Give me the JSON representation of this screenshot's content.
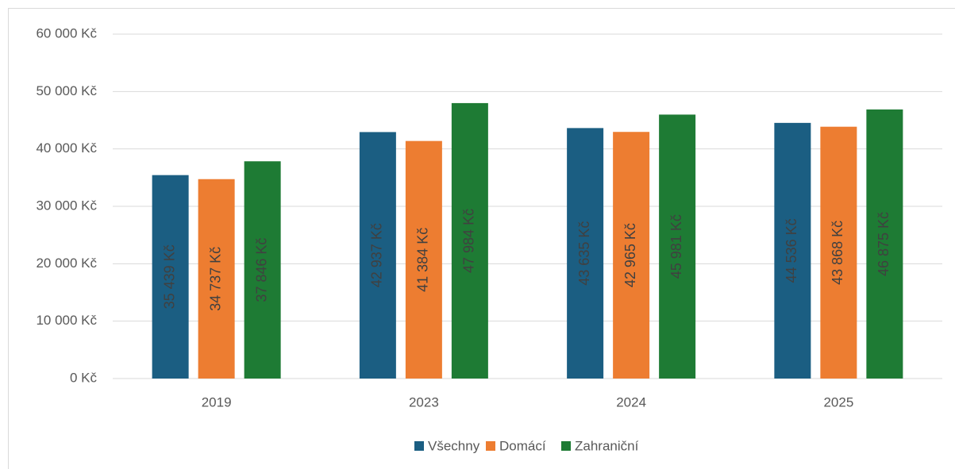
{
  "chart_data": {
    "type": "bar",
    "categories": [
      "2019",
      "2023",
      "2024",
      "2025"
    ],
    "series": [
      {
        "name": "Všechny",
        "color": "#1b5e82",
        "values": [
          35439,
          42937,
          43635,
          44536
        ],
        "value_labels": [
          "35 439 Kč",
          "42 937 Kč",
          "43 635 Kč",
          "44 536 Kč"
        ]
      },
      {
        "name": "Domácí",
        "color": "#ed7d31",
        "values": [
          34737,
          41384,
          42965,
          43868
        ],
        "value_labels": [
          "34 737 Kč",
          "41 384 Kč",
          "42 965 Kč",
          "43 868 Kč"
        ]
      },
      {
        "name": "Zahraniční",
        "color": "#1e7b34",
        "values": [
          37846,
          47984,
          45981,
          46875
        ],
        "value_labels": [
          "37 846 Kč",
          "47 984 Kč",
          "45 981 Kč",
          "46 875 Kč"
        ]
      }
    ],
    "ylim": [
      0,
      60000
    ],
    "yticks": [
      {
        "value": 0,
        "label": "0 Kč"
      },
      {
        "value": 10000,
        "label": "10 000 Kč"
      },
      {
        "value": 20000,
        "label": "20 000 Kč"
      },
      {
        "value": 30000,
        "label": "30 000 Kč"
      },
      {
        "value": 40000,
        "label": "40 000 Kč"
      },
      {
        "value": 50000,
        "label": "50 000 Kč"
      },
      {
        "value": 60000,
        "label": "60 000 Kč"
      }
    ],
    "grid": true,
    "legend": "bottom"
  }
}
